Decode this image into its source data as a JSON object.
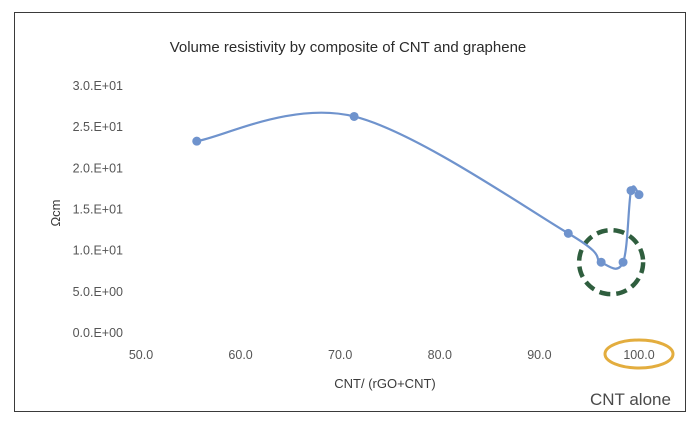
{
  "chart_data": {
    "type": "line",
    "title": "Volume resistivity by composite of CNT and graphene",
    "xlabel": "CNT/ (rGO+CNT)",
    "ylabel": "Ωcm",
    "xlim": [
      50,
      100
    ],
    "ylim": [
      0,
      30
    ],
    "x_ticks": [
      50,
      60,
      70,
      80,
      90,
      100
    ],
    "x_tick_labels": [
      "50.0",
      "60.0",
      "70.0",
      "80.0",
      "90.0",
      "100.0"
    ],
    "y_ticks": [
      0,
      5,
      10,
      15,
      20,
      25,
      30
    ],
    "y_tick_labels": [
      "0.0.E+00",
      "5.0.E+00",
      "1.0.E+01",
      "1.5.E+01",
      "2.0.E+01",
      "2.5.E+01",
      "3.0.E+01"
    ],
    "grid": false,
    "smooth": true,
    "series": [
      {
        "color": "#6f93cd",
        "x": [
          55.6,
          71.4,
          92.9,
          96.2,
          98.4,
          99.2,
          100.0
        ],
        "y": [
          23.3,
          26.3,
          12.1,
          8.6,
          8.6,
          17.3,
          16.8
        ]
      }
    ],
    "highlights": [
      {
        "shape": "dashed-circle",
        "color": "#2f5e3e",
        "cx": 97.2,
        "cy": 8.6
      },
      {
        "shape": "ellipse",
        "color": "#e3ad3e",
        "around": "x tick 100.0"
      }
    ],
    "annotation": "CNT alone"
  }
}
